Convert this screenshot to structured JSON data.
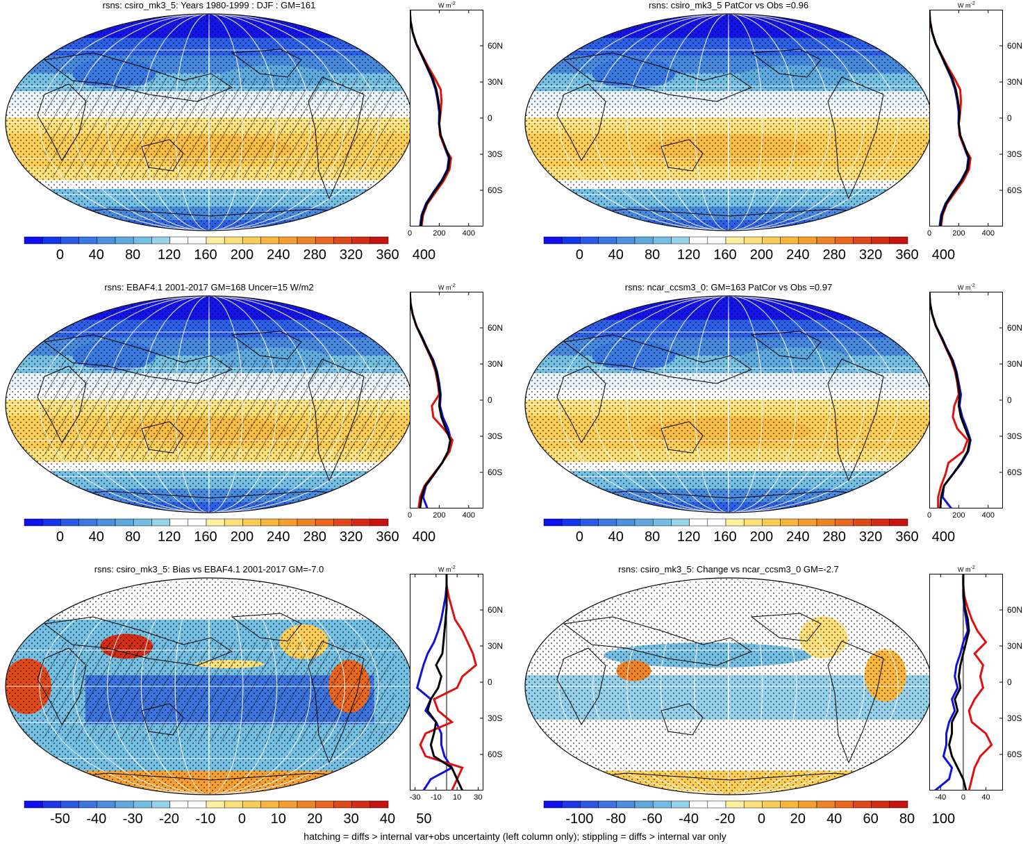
{
  "panels": [
    {
      "title": "rsns: csiro_mk3_5: Years 1980-1999 : DJF : GM=161",
      "kind": "abs",
      "hatched": true,
      "colorbar_labels": [
        "0",
        "40",
        "80",
        "120",
        "160",
        "200",
        "240",
        "280",
        "320",
        "360",
        "400"
      ],
      "profile": {
        "unit": "W m",
        "unit_sup": "-2",
        "xticks": [
          "0",
          "200",
          "400"
        ],
        "xlim": [
          0,
          500
        ],
        "lat_labels": [
          "60N",
          "30N",
          "0",
          "30S",
          "60S"
        ],
        "series": [
          {
            "color": "#1010e0",
            "values": [
              0,
              5,
              20,
              45,
              80,
              115,
              150,
              175,
              190,
              200,
              198,
              210,
              235,
              265,
              255,
              215,
              160,
              110,
              80,
              70
            ]
          },
          {
            "color": "#e01010",
            "values": [
              0,
              5,
              20,
              45,
              85,
              125,
              170,
              210,
              215,
              210,
              200,
              205,
              235,
              280,
              270,
              230,
              175,
              120,
              90,
              80
            ]
          },
          {
            "color": "#000000",
            "values": [
              0,
              5,
              20,
              45,
              82,
              118,
              155,
              180,
              195,
              205,
              200,
              210,
              240,
              270,
              260,
              220,
              165,
              115,
              85,
              75
            ]
          }
        ]
      }
    },
    {
      "title": "rsns: csiro_mk3_5 PatCor vs Obs =0.96",
      "kind": "abs",
      "hatched": false,
      "colorbar_labels": [
        "0",
        "40",
        "80",
        "120",
        "160",
        "200",
        "240",
        "280",
        "320",
        "360",
        "400"
      ],
      "profile": {
        "unit": "W m",
        "unit_sup": "-2",
        "xticks": [
          "0",
          "200",
          "400"
        ],
        "xlim": [
          0,
          500
        ],
        "lat_labels": [
          "60N",
          "30N",
          "0",
          "30S",
          "60S"
        ],
        "series": [
          {
            "color": "#1010e0",
            "values": [
              0,
              5,
              20,
              45,
              80,
              115,
              150,
              175,
              190,
              200,
              198,
              210,
              235,
              265,
              255,
              215,
              160,
              110,
              80,
              70
            ]
          },
          {
            "color": "#e01010",
            "values": [
              0,
              5,
              20,
              45,
              85,
              125,
              170,
              210,
              215,
              210,
              200,
              205,
              235,
              280,
              270,
              230,
              175,
              120,
              90,
              80
            ]
          },
          {
            "color": "#000000",
            "values": [
              0,
              5,
              20,
              45,
              82,
              118,
              155,
              180,
              195,
              205,
              200,
              210,
              240,
              270,
              260,
              220,
              165,
              115,
              85,
              75
            ]
          }
        ]
      }
    },
    {
      "title": "rsns: EBAF4.1 2001-2017 GM=168 Uncer=15 W/m2",
      "kind": "abs",
      "hatched": true,
      "colorbar_labels": [
        "0",
        "40",
        "80",
        "120",
        "160",
        "200",
        "240",
        "280",
        "320",
        "360",
        "400"
      ],
      "profile": {
        "unit": "W m",
        "unit_sup": "-2",
        "xticks": [
          "0",
          "200",
          "400"
        ],
        "xlim": [
          0,
          500
        ],
        "lat_labels": [
          "60N",
          "30N",
          "0",
          "30S",
          "60S"
        ],
        "series": [
          {
            "color": "#1010e0",
            "values": [
              0,
              5,
              20,
              45,
              85,
              120,
              160,
              185,
              200,
              210,
              205,
              225,
              260,
              280,
              265,
              220,
              165,
              110,
              90,
              120
            ]
          },
          {
            "color": "#e01010",
            "values": [
              0,
              5,
              20,
              45,
              80,
              115,
              150,
              175,
              190,
              200,
              150,
              160,
              230,
              290,
              270,
              220,
              160,
              100,
              70,
              60
            ]
          },
          {
            "color": "#000000",
            "values": [
              0,
              5,
              20,
              45,
              82,
              118,
              155,
              180,
              195,
              205,
              200,
              215,
              245,
              275,
              260,
              220,
              165,
              105,
              80,
              70
            ]
          }
        ]
      }
    },
    {
      "title": "rsns: ncar_ccsm3_0: GM=163 PatCor vs Obs =0.97",
      "kind": "abs",
      "hatched": false,
      "colorbar_labels": [
        "0",
        "40",
        "80",
        "120",
        "160",
        "200",
        "240",
        "280",
        "320",
        "360",
        "400"
      ],
      "profile": {
        "unit": "W m",
        "unit_sup": "-2",
        "xticks": [
          "0",
          "200",
          "400"
        ],
        "xlim": [
          0,
          500
        ],
        "lat_labels": [
          "60N",
          "30N",
          "0",
          "30S",
          "60S"
        ],
        "series": [
          {
            "color": "#1010e0",
            "values": [
              0,
              5,
              20,
              45,
              85,
              120,
              160,
              185,
              200,
              215,
              205,
              225,
              255,
              280,
              265,
              220,
              160,
              100,
              90,
              150
            ]
          },
          {
            "color": "#e01010",
            "values": [
              0,
              5,
              20,
              45,
              80,
              115,
              150,
              175,
              190,
              200,
              170,
              160,
              190,
              260,
              230,
              130,
              110,
              80,
              60,
              60
            ]
          },
          {
            "color": "#000000",
            "values": [
              0,
              5,
              20,
              45,
              82,
              118,
              155,
              180,
              195,
              205,
              200,
              215,
              245,
              275,
              260,
              215,
              160,
              100,
              80,
              75
            ]
          }
        ]
      }
    },
    {
      "title": "rsns: csiro_mk3_5: Bias vs EBAF4.1 2001-2017 GM=-7.0",
      "kind": "bias",
      "hatched": true,
      "colorbar_labels": [
        "-50",
        "-40",
        "-30",
        "-20",
        "-10",
        "0",
        "10",
        "20",
        "30",
        "40",
        "50"
      ],
      "profile": {
        "unit": "W m",
        "unit_sup": "-2",
        "xticks": [
          "-30",
          "-10",
          "10",
          "30"
        ],
        "xlim": [
          -35,
          35
        ],
        "lat_labels": [
          "60N",
          "30N",
          "0",
          "30S",
          "60S"
        ],
        "series": [
          {
            "color": "#1010e0",
            "values": [
              0,
              0,
              -1,
              -3,
              -5,
              -8,
              -12,
              -18,
              -22,
              -25,
              -28,
              -15,
              -20,
              -10,
              -5,
              -5,
              -2,
              5,
              -15,
              -22
            ]
          },
          {
            "color": "#e01010",
            "values": [
              0,
              0,
              2,
              5,
              8,
              15,
              20,
              25,
              28,
              15,
              10,
              -12,
              -8,
              5,
              -20,
              -25,
              -20,
              15,
              10,
              5
            ]
          },
          {
            "color": "#000000",
            "values": [
              0,
              0,
              0,
              0,
              -1,
              -2,
              -3,
              -4,
              -10,
              -5,
              -8,
              -15,
              -18,
              -10,
              -12,
              -15,
              -12,
              5,
              10,
              15
            ]
          }
        ]
      }
    },
    {
      "title": "rsns: csiro_mk3_5: Change vs ncar_ccsm3_0 GM=-2.7",
      "kind": "change",
      "hatched": false,
      "colorbar_labels": [
        "-100",
        "-80",
        "-60",
        "-40",
        "-20",
        "0",
        "20",
        "40",
        "60",
        "80",
        "100"
      ],
      "profile": {
        "unit": "W m",
        "unit_sup": "-2",
        "xticks": [
          "-40",
          "0",
          "40"
        ],
        "xlim": [
          -60,
          70
        ],
        "lat_labels": [
          "60N",
          "30N",
          "0",
          "30S",
          "60S"
        ],
        "series": [
          {
            "color": "#1010e0",
            "values": [
              0,
              0,
              0,
              2,
              5,
              8,
              0,
              -5,
              -12,
              -15,
              -10,
              -20,
              -15,
              -25,
              -30,
              -30,
              -35,
              -20,
              -25,
              -50
            ]
          },
          {
            "color": "#e01010",
            "values": [
              0,
              0,
              2,
              8,
              15,
              25,
              40,
              20,
              35,
              30,
              35,
              20,
              10,
              15,
              40,
              50,
              30,
              20,
              15,
              10
            ]
          },
          {
            "color": "#000000",
            "values": [
              0,
              0,
              1,
              3,
              8,
              10,
              5,
              0,
              -5,
              -8,
              -5,
              -15,
              -10,
              -20,
              -20,
              -25,
              -20,
              -10,
              0,
              5
            ]
          }
        ]
      }
    }
  ],
  "footer": "hatching = diffs > internal var+obs uncertainty (left column only); stippling = diffs > internal var only",
  "colors": {
    "abs": [
      "#1010ee",
      "#1535ea",
      "#2a5ae6",
      "#3a78e2",
      "#4c92dc",
      "#5ea9de",
      "#74bfe2",
      "#9ad2ea",
      "#ffffff",
      "#ffffff",
      "#fff1a0",
      "#fde07a",
      "#fbcd56",
      "#f8b63c",
      "#f49f30",
      "#ef8426",
      "#e9681e",
      "#e04a18",
      "#d62e14",
      "#c81410"
    ],
    "div": [
      "#1010ee",
      "#1f36e8",
      "#2f56e2",
      "#3d74de",
      "#4e8fdc",
      "#60a7de",
      "#74bde2",
      "#96d0ea",
      "#ffffff",
      "#ffffff",
      "#fff1a0",
      "#fde07a",
      "#fbcd56",
      "#f8b63c",
      "#f49f30",
      "#ef8426",
      "#e9681e",
      "#e04a18",
      "#d62e14",
      "#c81410"
    ]
  }
}
